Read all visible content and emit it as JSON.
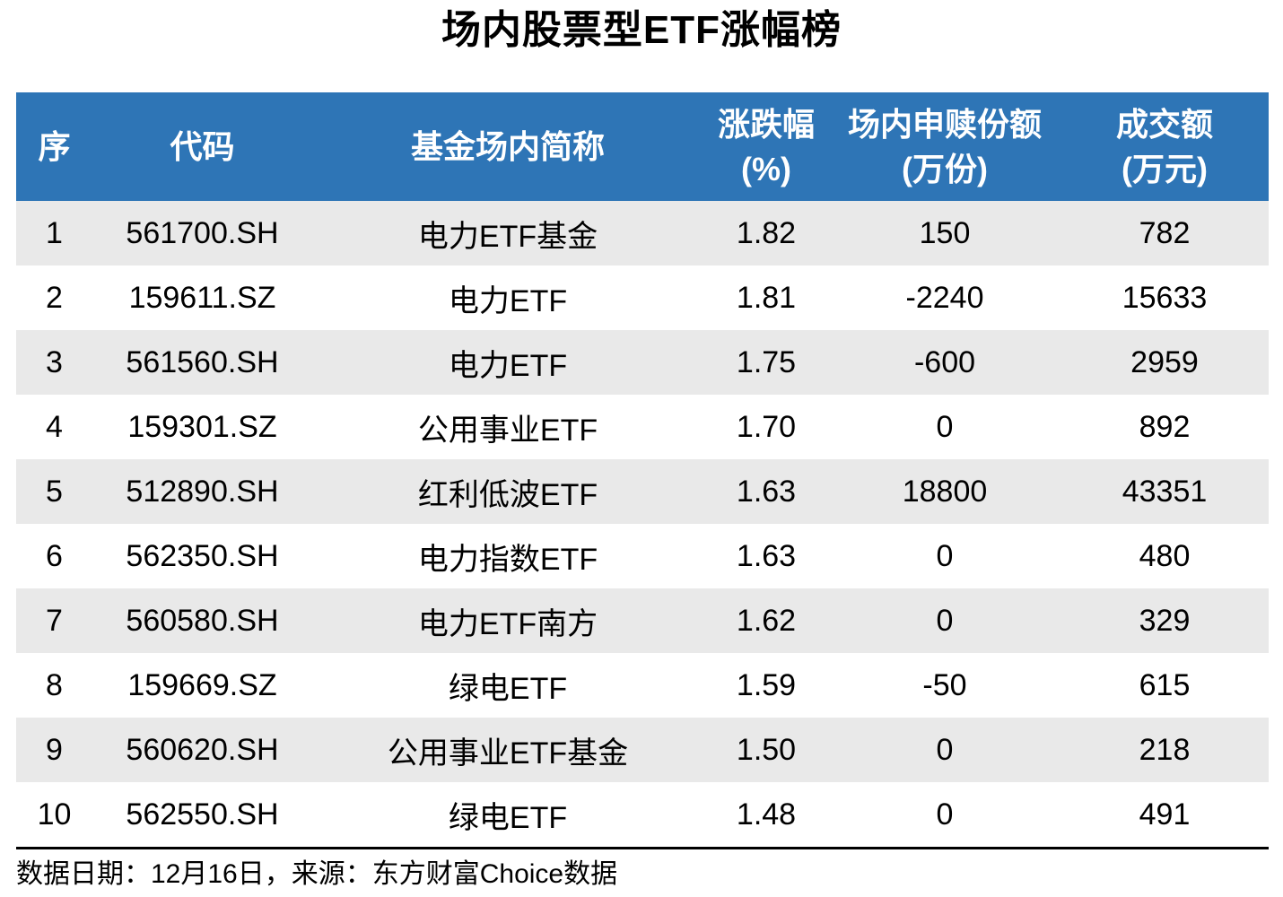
{
  "title": "场内股票型ETF涨幅榜",
  "colors": {
    "header_bg": "#2E75B6",
    "header_text": "#FFFFFF",
    "stripe": "#E9E9E9",
    "text": "#000000"
  },
  "table": {
    "columns": [
      {
        "label": "序",
        "sub": ""
      },
      {
        "label": "代码",
        "sub": ""
      },
      {
        "label": "基金场内简称",
        "sub": ""
      },
      {
        "label": "涨跌幅",
        "sub": "(%)"
      },
      {
        "label": "场内申赎份额",
        "sub": "(万份)"
      },
      {
        "label": "成交额",
        "sub": "(万元)"
      }
    ],
    "fields": [
      "no",
      "code",
      "name",
      "chg",
      "shares",
      "turnover"
    ],
    "rows": [
      {
        "no": "1",
        "code": "561700.SH",
        "name": "电力ETF基金",
        "chg": "1.82",
        "shares": "150",
        "turnover": "782"
      },
      {
        "no": "2",
        "code": "159611.SZ",
        "name": "电力ETF",
        "chg": "1.81",
        "shares": "-2240",
        "turnover": "15633"
      },
      {
        "no": "3",
        "code": "561560.SH",
        "name": "电力ETF",
        "chg": "1.75",
        "shares": "-600",
        "turnover": "2959"
      },
      {
        "no": "4",
        "code": "159301.SZ",
        "name": "公用事业ETF",
        "chg": "1.70",
        "shares": "0",
        "turnover": "892"
      },
      {
        "no": "5",
        "code": "512890.SH",
        "name": "红利低波ETF",
        "chg": "1.63",
        "shares": "18800",
        "turnover": "43351"
      },
      {
        "no": "6",
        "code": "562350.SH",
        "name": "电力指数ETF",
        "chg": "1.63",
        "shares": "0",
        "turnover": "480"
      },
      {
        "no": "7",
        "code": "560580.SH",
        "name": "电力ETF南方",
        "chg": "1.62",
        "shares": "0",
        "turnover": "329"
      },
      {
        "no": "8",
        "code": "159669.SZ",
        "name": "绿电ETF",
        "chg": "1.59",
        "shares": "-50",
        "turnover": "615"
      },
      {
        "no": "9",
        "code": "560620.SH",
        "name": "公用事业ETF基金",
        "chg": "1.50",
        "shares": "0",
        "turnover": "218"
      },
      {
        "no": "10",
        "code": "562550.SH",
        "name": "绿电ETF",
        "chg": "1.48",
        "shares": "0",
        "turnover": "491"
      }
    ]
  },
  "footer": {
    "note": "数据日期：12月16日，来源：东方财富Choice数据"
  },
  "chart_data": {
    "type": "table",
    "title": "场内股票型ETF涨幅榜",
    "columns": [
      "序",
      "代码",
      "基金场内简称",
      "涨跌幅(%)",
      "场内申赎份额(万份)",
      "成交额(万元)"
    ],
    "rows": [
      [
        1,
        "561700.SH",
        "电力ETF基金",
        1.82,
        150,
        782
      ],
      [
        2,
        "159611.SZ",
        "电力ETF",
        1.81,
        -2240,
        15633
      ],
      [
        3,
        "561560.SH",
        "电力ETF",
        1.75,
        -600,
        2959
      ],
      [
        4,
        "159301.SZ",
        "公用事业ETF",
        1.7,
        0,
        892
      ],
      [
        5,
        "512890.SH",
        "红利低波ETF",
        1.63,
        18800,
        43351
      ],
      [
        6,
        "562350.SH",
        "电力指数ETF",
        1.63,
        0,
        480
      ],
      [
        7,
        "560580.SH",
        "电力ETF南方",
        1.62,
        0,
        329
      ],
      [
        8,
        "159669.SZ",
        "绿电ETF",
        1.59,
        -50,
        615
      ],
      [
        9,
        "560620.SH",
        "公用事业ETF基金",
        1.5,
        0,
        218
      ],
      [
        10,
        "562550.SH",
        "绿电ETF",
        1.48,
        0,
        491
      ]
    ],
    "source_note": "数据日期：12月16日，来源：东方财富Choice数据",
    "layout": {
      "striped_rows": true,
      "header_background": "#2E75B6",
      "stripe_background": "#E9E9E9"
    }
  }
}
